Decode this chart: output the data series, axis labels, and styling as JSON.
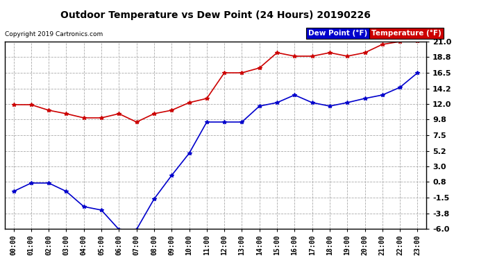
{
  "title": "Outdoor Temperature vs Dew Point (24 Hours) 20190226",
  "copyright": "Copyright 2019 Cartronics.com",
  "hours": [
    "00:00",
    "01:00",
    "02:00",
    "03:00",
    "04:00",
    "05:00",
    "06:00",
    "07:00",
    "08:00",
    "09:00",
    "10:00",
    "11:00",
    "12:00",
    "13:00",
    "14:00",
    "15:00",
    "16:00",
    "17:00",
    "18:00",
    "19:00",
    "20:00",
    "21:00",
    "22:00",
    "23:00"
  ],
  "temperature": [
    11.9,
    11.9,
    11.1,
    10.6,
    10.0,
    10.0,
    10.6,
    9.4,
    10.6,
    11.1,
    12.2,
    12.8,
    16.5,
    16.5,
    17.2,
    19.4,
    18.9,
    18.9,
    19.4,
    18.9,
    19.4,
    20.6,
    21.0,
    21.1
  ],
  "dew_point": [
    -0.6,
    0.6,
    0.6,
    -0.6,
    -2.8,
    -3.3,
    -6.1,
    -6.1,
    -1.7,
    1.7,
    4.9,
    9.4,
    9.4,
    9.4,
    11.7,
    12.2,
    13.3,
    12.2,
    11.7,
    12.2,
    12.8,
    13.3,
    14.4,
    16.5
  ],
  "temp_color": "#cc0000",
  "dew_color": "#0000cc",
  "bg_color": "#ffffff",
  "grid_color": "#aaaaaa",
  "ylim_min": -6.0,
  "ylim_max": 21.0,
  "yticks": [
    21.0,
    18.8,
    16.5,
    14.2,
    12.0,
    9.8,
    7.5,
    5.2,
    3.0,
    0.8,
    -1.5,
    -3.8,
    -6.0
  ],
  "legend_dew_label": "Dew Point (°F)",
  "legend_temp_label": "Temperature (°F)",
  "marker": "*",
  "marker_size": 4,
  "line_width": 1.2
}
